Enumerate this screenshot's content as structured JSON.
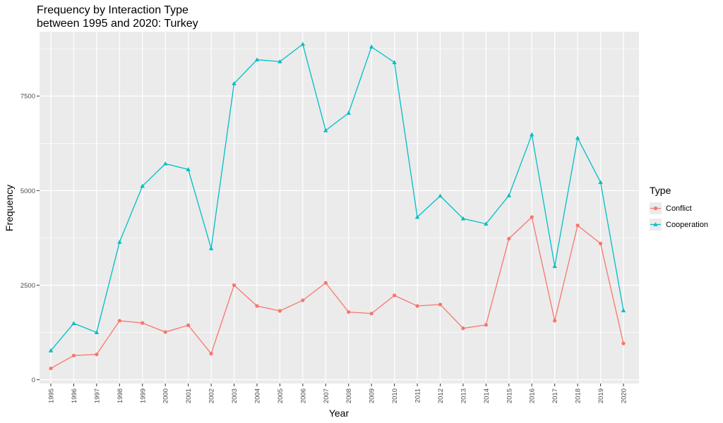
{
  "chart_data": {
    "type": "line",
    "title": "Frequency by Interaction Type",
    "subtitle": "between 1995 and 2020: Turkey",
    "xlabel": "Year",
    "ylabel": "Frequency",
    "x": [
      1995,
      1996,
      1997,
      1998,
      1999,
      2000,
      2001,
      2002,
      2003,
      2004,
      2005,
      2006,
      2007,
      2008,
      2009,
      2010,
      2011,
      2012,
      2013,
      2014,
      2015,
      2016,
      2017,
      2018,
      2019,
      2020
    ],
    "yticks": [
      0,
      2500,
      5000,
      7500
    ],
    "ylim": [
      -100,
      9200
    ],
    "grid": true,
    "legend": {
      "title": "Type",
      "placement": "right"
    },
    "series": [
      {
        "name": "Conflict",
        "color": "#F8766D",
        "marker": "circle",
        "values": [
          300,
          640,
          670,
          1560,
          1500,
          1260,
          1440,
          690,
          2500,
          1950,
          1820,
          2100,
          2560,
          1790,
          1750,
          2230,
          1950,
          1990,
          1360,
          1450,
          3730,
          4300,
          1560,
          4080,
          3600,
          960
        ]
      },
      {
        "name": "Cooperation",
        "color": "#00BFC4",
        "marker": "triangle",
        "values": [
          770,
          1490,
          1250,
          3640,
          5120,
          5710,
          5560,
          3470,
          7830,
          8460,
          8410,
          8870,
          6590,
          7050,
          8800,
          8390,
          4300,
          4860,
          4260,
          4120,
          4870,
          6480,
          3000,
          6390,
          5220,
          1830
        ]
      }
    ]
  }
}
